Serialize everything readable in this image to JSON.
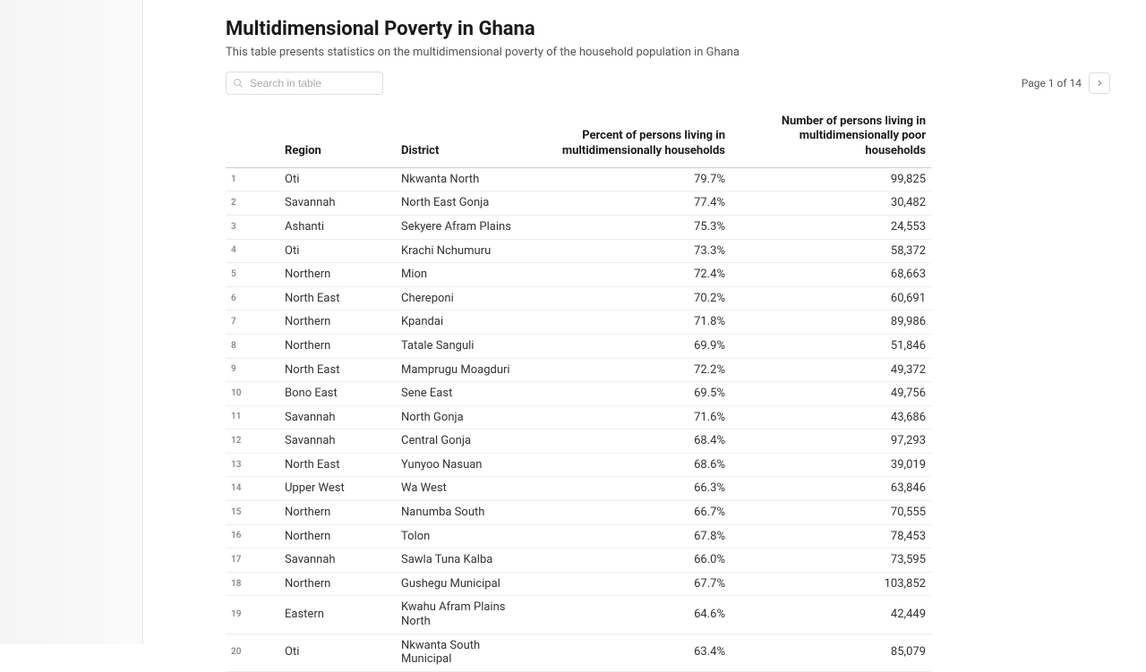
{
  "title": "Multidimensional Poverty in Ghana",
  "subtitle": "This table presents statistics on the multidimensional poverty of the household population in Ghana",
  "search": {
    "placeholder": "Search in table"
  },
  "pager": {
    "text": "Page 1 of 14"
  },
  "table": {
    "columns": {
      "idx": "",
      "region": "Region",
      "district": "District",
      "percent": "Percent of persons living in multidimensionally households",
      "count": "Number of persons living in multidimensionally poor households"
    },
    "rows": [
      {
        "idx": "1",
        "region": "Oti",
        "district": "Nkwanta North",
        "percent": "79.7%",
        "count": "99,825"
      },
      {
        "idx": "2",
        "region": "Savannah",
        "district": "North East Gonja",
        "percent": "77.4%",
        "count": "30,482"
      },
      {
        "idx": "3",
        "region": "Ashanti",
        "district": "Sekyere Afram Plains",
        "percent": "75.3%",
        "count": "24,553"
      },
      {
        "idx": "4",
        "region": "Oti",
        "district": "Krachi Nchumuru",
        "percent": "73.3%",
        "count": "58,372"
      },
      {
        "idx": "5",
        "region": "Northern",
        "district": "Mion",
        "percent": "72.4%",
        "count": "68,663"
      },
      {
        "idx": "6",
        "region": "North East",
        "district": "Chereponi",
        "percent": "70.2%",
        "count": "60,691"
      },
      {
        "idx": "7",
        "region": "Northern",
        "district": "Kpandai",
        "percent": "71.8%",
        "count": "89,986"
      },
      {
        "idx": "8",
        "region": "Northern",
        "district": "Tatale Sanguli",
        "percent": "69.9%",
        "count": "51,846"
      },
      {
        "idx": "9",
        "region": "North East",
        "district": "Mamprugu Moagduri",
        "percent": "72.2%",
        "count": "49,372"
      },
      {
        "idx": "10",
        "region": "Bono East",
        "district": "Sene East",
        "percent": "69.5%",
        "count": "49,756"
      },
      {
        "idx": "11",
        "region": "Savannah",
        "district": "North Gonja",
        "percent": "71.6%",
        "count": "43,686"
      },
      {
        "idx": "12",
        "region": "Savannah",
        "district": "Central Gonja",
        "percent": "68.4%",
        "count": "97,293"
      },
      {
        "idx": "13",
        "region": "North East",
        "district": "Yunyoo Nasuan",
        "percent": "68.6%",
        "count": "39,019"
      },
      {
        "idx": "14",
        "region": "Upper West",
        "district": "Wa West",
        "percent": "66.3%",
        "count": "63,846"
      },
      {
        "idx": "15",
        "region": "Northern",
        "district": "Nanumba South",
        "percent": "66.7%",
        "count": "70,555"
      },
      {
        "idx": "16",
        "region": "Northern",
        "district": "Tolon",
        "percent": "67.8%",
        "count": "78,453"
      },
      {
        "idx": "17",
        "region": "Savannah",
        "district": "Sawla Tuna Kalba",
        "percent": "66.0%",
        "count": "73,595"
      },
      {
        "idx": "18",
        "region": "Northern",
        "district": "Gushegu Municipal",
        "percent": "67.7%",
        "count": "103,852"
      },
      {
        "idx": "19",
        "region": "Eastern",
        "district": "Kwahu Afram Plains North",
        "percent": "64.6%",
        "count": "42,449"
      },
      {
        "idx": "20",
        "region": "Oti",
        "district": "Nkwanta South Municipal",
        "percent": "63.4%",
        "count": "85,079"
      }
    ]
  },
  "colors": {
    "text_primary": "#1a1a1a",
    "text_secondary": "#555555",
    "border": "#dddddd",
    "row_border": "#eeeeee",
    "background": "#ffffff"
  }
}
